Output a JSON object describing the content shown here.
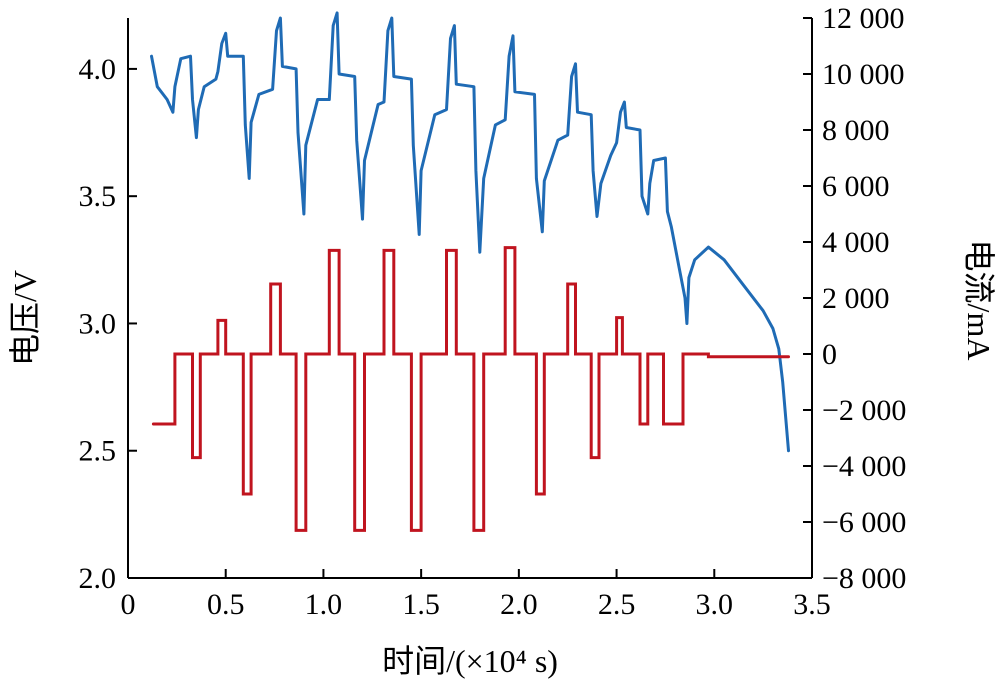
{
  "chart_data": {
    "type": "line",
    "xlabel": "时间/(×10⁴ s)",
    "ylabel_left": "电压/V",
    "ylabel_right": "电流/mA",
    "xlim": [
      0,
      3.5
    ],
    "ylim_left": [
      2.0,
      4.2
    ],
    "ylim_right": [
      -8000,
      12000
    ],
    "grid": false,
    "x_ticks": [
      "0",
      "0.5",
      "1.0",
      "1.5",
      "2.0",
      "2.5",
      "3.0",
      "3.5"
    ],
    "x_tick_values": [
      0,
      0.5,
      1.0,
      1.5,
      2.0,
      2.5,
      3.0,
      3.5
    ],
    "y_left_ticks": [
      "2.0",
      "2.5",
      "3.0",
      "3.5",
      "4.0"
    ],
    "y_left_tick_values": [
      2.0,
      2.5,
      3.0,
      3.5,
      4.0
    ],
    "y_right_ticks": [
      "−8 000",
      "−6 000",
      "−4 000",
      "−2 000",
      "0",
      "2 000",
      "4 000",
      "6 000",
      "8 000",
      "10 000",
      "12 000"
    ],
    "y_right_tick_values": [
      -8000,
      -6000,
      -4000,
      -2000,
      0,
      2000,
      4000,
      6000,
      8000,
      10000,
      12000
    ],
    "series": [
      {
        "axis": "left",
        "color": "#1f6bb5",
        "points": [
          [
            0.12,
            4.05
          ],
          [
            0.15,
            3.93
          ],
          [
            0.2,
            3.88
          ],
          [
            0.23,
            3.83
          ],
          [
            0.24,
            3.93
          ],
          [
            0.27,
            4.04
          ],
          [
            0.32,
            4.05
          ],
          [
            0.33,
            3.88
          ],
          [
            0.35,
            3.73
          ],
          [
            0.36,
            3.84
          ],
          [
            0.39,
            3.93
          ],
          [
            0.45,
            3.96
          ],
          [
            0.46,
            3.99
          ],
          [
            0.48,
            4.1
          ],
          [
            0.5,
            4.14
          ],
          [
            0.51,
            4.05
          ],
          [
            0.59,
            4.05
          ],
          [
            0.6,
            3.78
          ],
          [
            0.62,
            3.57
          ],
          [
            0.63,
            3.79
          ],
          [
            0.67,
            3.9
          ],
          [
            0.74,
            3.92
          ],
          [
            0.76,
            4.15
          ],
          [
            0.78,
            4.2
          ],
          [
            0.79,
            4.01
          ],
          [
            0.86,
            4.0
          ],
          [
            0.87,
            3.75
          ],
          [
            0.9,
            3.43
          ],
          [
            0.91,
            3.7
          ],
          [
            0.97,
            3.88
          ],
          [
            1.03,
            3.88
          ],
          [
            1.05,
            4.17
          ],
          [
            1.07,
            4.22
          ],
          [
            1.08,
            3.98
          ],
          [
            1.16,
            3.97
          ],
          [
            1.17,
            3.72
          ],
          [
            1.2,
            3.41
          ],
          [
            1.21,
            3.64
          ],
          [
            1.28,
            3.86
          ],
          [
            1.31,
            3.87
          ],
          [
            1.33,
            4.15
          ],
          [
            1.35,
            4.2
          ],
          [
            1.36,
            3.97
          ],
          [
            1.45,
            3.96
          ],
          [
            1.46,
            3.7
          ],
          [
            1.49,
            3.35
          ],
          [
            1.5,
            3.6
          ],
          [
            1.57,
            3.82
          ],
          [
            1.63,
            3.84
          ],
          [
            1.65,
            4.12
          ],
          [
            1.67,
            4.17
          ],
          [
            1.68,
            3.94
          ],
          [
            1.77,
            3.93
          ],
          [
            1.78,
            3.6
          ],
          [
            1.8,
            3.28
          ],
          [
            1.82,
            3.57
          ],
          [
            1.88,
            3.78
          ],
          [
            1.93,
            3.8
          ],
          [
            1.95,
            4.05
          ],
          [
            1.97,
            4.13
          ],
          [
            1.98,
            3.91
          ],
          [
            2.08,
            3.9
          ],
          [
            2.09,
            3.57
          ],
          [
            2.12,
            3.36
          ],
          [
            2.13,
            3.56
          ],
          [
            2.2,
            3.72
          ],
          [
            2.25,
            3.74
          ],
          [
            2.27,
            3.97
          ],
          [
            2.29,
            4.02
          ],
          [
            2.3,
            3.83
          ],
          [
            2.37,
            3.82
          ],
          [
            2.38,
            3.6
          ],
          [
            2.4,
            3.42
          ],
          [
            2.42,
            3.55
          ],
          [
            2.47,
            3.66
          ],
          [
            2.5,
            3.71
          ],
          [
            2.52,
            3.83
          ],
          [
            2.54,
            3.87
          ],
          [
            2.55,
            3.77
          ],
          [
            2.62,
            3.76
          ],
          [
            2.63,
            3.5
          ],
          [
            2.66,
            3.43
          ],
          [
            2.67,
            3.55
          ],
          [
            2.69,
            3.64
          ],
          [
            2.75,
            3.65
          ],
          [
            2.76,
            3.44
          ],
          [
            2.78,
            3.38
          ],
          [
            2.82,
            3.22
          ],
          [
            2.85,
            3.1
          ],
          [
            2.86,
            3.0
          ],
          [
            2.87,
            3.18
          ],
          [
            2.9,
            3.25
          ],
          [
            2.97,
            3.3
          ],
          [
            3.05,
            3.25
          ],
          [
            3.15,
            3.15
          ],
          [
            3.25,
            3.05
          ],
          [
            3.3,
            2.98
          ],
          [
            3.33,
            2.9
          ],
          [
            3.35,
            2.77
          ],
          [
            3.38,
            2.5
          ]
        ]
      },
      {
        "axis": "right",
        "color": "#c0141f",
        "points": [
          [
            0.13,
            -2500
          ],
          [
            0.24,
            -2500
          ],
          [
            0.24,
            0
          ],
          [
            0.33,
            0
          ],
          [
            0.33,
            -3700
          ],
          [
            0.37,
            -3700
          ],
          [
            0.37,
            0
          ],
          [
            0.46,
            0
          ],
          [
            0.46,
            1200
          ],
          [
            0.5,
            1200
          ],
          [
            0.5,
            0
          ],
          [
            0.59,
            0
          ],
          [
            0.59,
            -5000
          ],
          [
            0.63,
            -5000
          ],
          [
            0.63,
            0
          ],
          [
            0.73,
            0
          ],
          [
            0.73,
            2500
          ],
          [
            0.78,
            2500
          ],
          [
            0.78,
            0
          ],
          [
            0.86,
            0
          ],
          [
            0.86,
            -6300
          ],
          [
            0.91,
            -6300
          ],
          [
            0.91,
            0
          ],
          [
            1.03,
            0
          ],
          [
            1.03,
            3700
          ],
          [
            1.08,
            3700
          ],
          [
            1.08,
            0
          ],
          [
            1.16,
            0
          ],
          [
            1.16,
            -6300
          ],
          [
            1.21,
            -6300
          ],
          [
            1.21,
            0
          ],
          [
            1.31,
            0
          ],
          [
            1.31,
            3700
          ],
          [
            1.36,
            3700
          ],
          [
            1.36,
            0
          ],
          [
            1.45,
            0
          ],
          [
            1.45,
            -6300
          ],
          [
            1.5,
            -6300
          ],
          [
            1.5,
            0
          ],
          [
            1.63,
            0
          ],
          [
            1.63,
            3700
          ],
          [
            1.68,
            3700
          ],
          [
            1.68,
            0
          ],
          [
            1.77,
            0
          ],
          [
            1.77,
            -6300
          ],
          [
            1.82,
            -6300
          ],
          [
            1.82,
            0
          ],
          [
            1.93,
            0
          ],
          [
            1.93,
            3800
          ],
          [
            1.98,
            3800
          ],
          [
            1.98,
            0
          ],
          [
            2.09,
            0
          ],
          [
            2.09,
            -5000
          ],
          [
            2.13,
            -5000
          ],
          [
            2.13,
            0
          ],
          [
            2.25,
            0
          ],
          [
            2.25,
            2500
          ],
          [
            2.29,
            2500
          ],
          [
            2.29,
            0
          ],
          [
            2.37,
            0
          ],
          [
            2.37,
            -3700
          ],
          [
            2.41,
            -3700
          ],
          [
            2.41,
            0
          ],
          [
            2.5,
            0
          ],
          [
            2.5,
            1300
          ],
          [
            2.53,
            1300
          ],
          [
            2.53,
            0
          ],
          [
            2.62,
            0
          ],
          [
            2.62,
            -2500
          ],
          [
            2.66,
            -2500
          ],
          [
            2.66,
            0
          ],
          [
            2.74,
            0
          ],
          [
            2.74,
            -2500
          ],
          [
            2.84,
            -2500
          ],
          [
            2.84,
            0
          ],
          [
            2.97,
            0
          ],
          [
            2.97,
            -100
          ],
          [
            3.38,
            -100
          ]
        ]
      }
    ]
  }
}
